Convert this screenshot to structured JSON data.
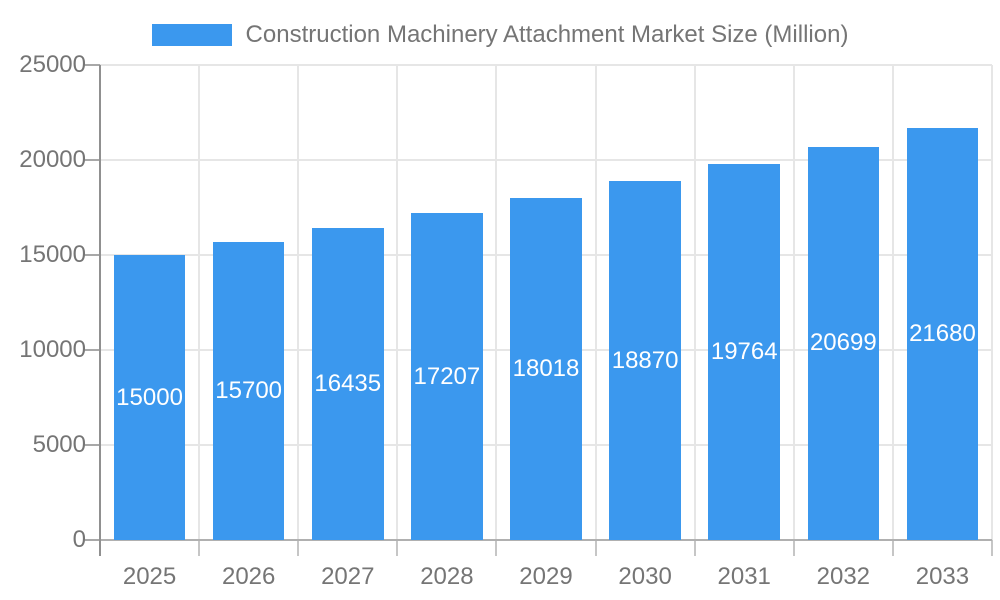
{
  "legend": {
    "label": "Construction Machinery Attachment Market Size (Million)"
  },
  "chart_data": {
    "type": "bar",
    "title": "Construction Machinery Attachment Market Size (Million)",
    "categories": [
      "2025",
      "2026",
      "2027",
      "2028",
      "2029",
      "2030",
      "2031",
      "2032",
      "2033"
    ],
    "values": [
      15000,
      15700,
      16435,
      17207,
      18018,
      18870,
      19764,
      20699,
      21680
    ],
    "series": [
      {
        "name": "Construction Machinery Attachment Market Size (Million)",
        "values": [
          15000,
          15700,
          16435,
          17207,
          18018,
          18870,
          19764,
          20699,
          21680
        ]
      }
    ],
    "xlabel": "",
    "ylabel": "",
    "ylim": [
      0,
      25000
    ],
    "y_ticks": [
      0,
      5000,
      10000,
      15000,
      20000,
      25000
    ],
    "grid": true,
    "legend_position": "top",
    "value_labels": "inside-center"
  },
  "colors": {
    "bar": "#3B98EE",
    "bar_label": "#FFFFFF",
    "axis_text": "#757575",
    "grid_line": "#E6E6E6",
    "y_axis_line": "#909090",
    "x_axis_line": "#B0B0B0",
    "y_tick": "#A8A8A8",
    "x_tick": "#C6C6C6",
    "background": "#FFFFFF"
  }
}
